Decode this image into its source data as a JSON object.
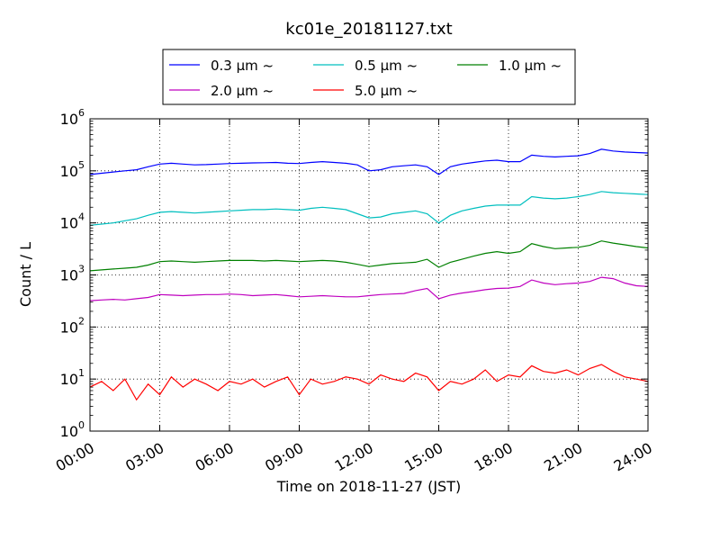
{
  "chart_data": {
    "type": "line",
    "title": "kc01e_20181127.txt",
    "xlabel": "Time on 2018-11-27 (JST)",
    "ylabel": "Count / L",
    "yscale": "log",
    "ylim": [
      1,
      1000000
    ],
    "xlim": [
      "00:00",
      "24:00"
    ],
    "grid": true,
    "legend_position": "top",
    "x_ticks": [
      "00:00",
      "03:00",
      "06:00",
      "09:00",
      "12:00",
      "15:00",
      "18:00",
      "21:00",
      "24:00"
    ],
    "y_ticks": [
      {
        "base": "10",
        "exp": "0",
        "value": 1
      },
      {
        "base": "10",
        "exp": "1",
        "value": 10
      },
      {
        "base": "10",
        "exp": "2",
        "value": 100
      },
      {
        "base": "10",
        "exp": "3",
        "value": 1000
      },
      {
        "base": "10",
        "exp": "4",
        "value": 10000
      },
      {
        "base": "10",
        "exp": "5",
        "value": 100000
      },
      {
        "base": "10",
        "exp": "6",
        "value": 1000000
      }
    ],
    "x_hours": [
      0,
      0.5,
      1,
      1.5,
      2,
      2.5,
      3,
      3.5,
      4,
      4.5,
      5,
      5.5,
      6,
      6.5,
      7,
      7.5,
      8,
      8.5,
      9,
      9.5,
      10,
      10.5,
      11,
      11.5,
      12,
      12.5,
      13,
      13.5,
      14,
      14.5,
      15,
      15.5,
      16,
      16.5,
      17,
      17.5,
      18,
      18.5,
      19,
      19.5,
      20,
      20.5,
      21,
      21.5,
      22,
      22.5,
      23,
      23.5,
      24
    ],
    "series": [
      {
        "name": "0.3 μm ~",
        "color": "#0000ff",
        "values": [
          85000,
          90000,
          95000,
          100000,
          105000,
          120000,
          135000,
          140000,
          135000,
          130000,
          132000,
          135000,
          138000,
          140000,
          142000,
          143000,
          145000,
          140000,
          138000,
          145000,
          150000,
          145000,
          140000,
          130000,
          100000,
          105000,
          120000,
          125000,
          130000,
          120000,
          85000,
          120000,
          135000,
          145000,
          155000,
          160000,
          150000,
          150000,
          200000,
          190000,
          185000,
          190000,
          195000,
          215000,
          260000,
          240000,
          230000,
          225000,
          220000
        ]
      },
      {
        "name": "0.5 μm ~",
        "color": "#00bfbf",
        "values": [
          9000,
          9500,
          10000,
          11000,
          12000,
          14000,
          16000,
          16500,
          16000,
          15500,
          16000,
          16500,
          17000,
          17500,
          18000,
          18000,
          18500,
          18000,
          17500,
          19000,
          20000,
          19000,
          18000,
          15000,
          12500,
          13000,
          15000,
          16000,
          17000,
          15000,
          10000,
          14000,
          17000,
          19000,
          21000,
          22000,
          22000,
          22000,
          32000,
          30000,
          29000,
          30000,
          32000,
          35000,
          40000,
          38000,
          37000,
          36000,
          35000
        ]
      },
      {
        "name": "1.0 μm ~",
        "color": "#008000",
        "values": [
          1200,
          1250,
          1300,
          1350,
          1400,
          1550,
          1800,
          1850,
          1800,
          1750,
          1800,
          1850,
          1900,
          1900,
          1900,
          1850,
          1900,
          1850,
          1800,
          1850,
          1900,
          1850,
          1750,
          1600,
          1450,
          1550,
          1650,
          1700,
          1750,
          2000,
          1400,
          1750,
          2000,
          2300,
          2600,
          2800,
          2600,
          2800,
          4000,
          3500,
          3200,
          3300,
          3400,
          3700,
          4500,
          4100,
          3800,
          3500,
          3300
        ]
      },
      {
        "name": "2.0 μm ~",
        "color": "#bf00bf",
        "values": [
          320,
          330,
          340,
          330,
          350,
          370,
          420,
          410,
          400,
          410,
          420,
          420,
          430,
          420,
          400,
          410,
          420,
          400,
          380,
          390,
          400,
          390,
          380,
          380,
          400,
          420,
          430,
          440,
          500,
          550,
          350,
          410,
          450,
          480,
          520,
          550,
          560,
          600,
          800,
          700,
          650,
          680,
          700,
          750,
          900,
          850,
          700,
          620,
          600
        ]
      },
      {
        "name": "5.0 μm ~",
        "color": "#ff0000",
        "values": [
          7,
          9,
          6,
          10,
          4,
          8,
          5,
          11,
          7,
          10,
          8,
          6,
          9,
          8,
          10,
          7,
          9,
          11,
          5,
          10,
          8,
          9,
          11,
          10,
          8,
          12,
          10,
          9,
          13,
          11,
          6,
          9,
          8,
          10,
          15,
          9,
          12,
          11,
          18,
          14,
          13,
          15,
          12,
          16,
          19,
          14,
          11,
          10,
          9
        ]
      }
    ]
  }
}
